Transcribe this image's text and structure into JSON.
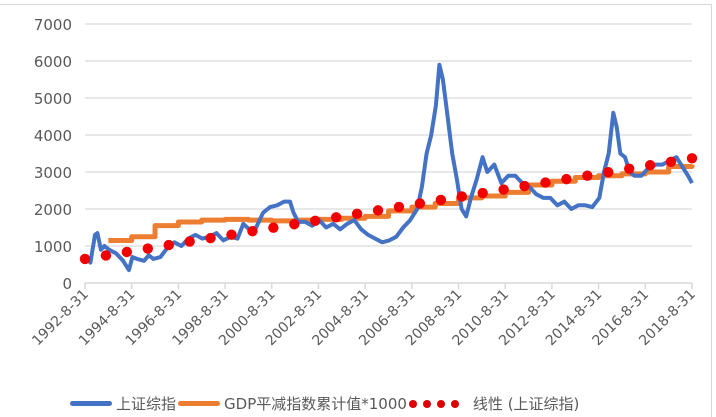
{
  "chart_data": {
    "type": "line",
    "title": "",
    "xlabel": "",
    "ylabel": "",
    "ylim": [
      0,
      7000
    ],
    "yticks": [
      0,
      1000,
      2000,
      3000,
      4000,
      5000,
      6000,
      7000
    ],
    "grid": true,
    "legend_position": "bottom",
    "x_tick_labels": [
      "1992-8-31",
      "1994-8-31",
      "1996-8-31",
      "1998-8-31",
      "2000-8-31",
      "2002-8-31",
      "2004-8-31",
      "2006-8-31",
      "2008-8-31",
      "2010-8-31",
      "2012-8-31",
      "2014-8-31",
      "2016-8-31",
      "2018-8-31"
    ],
    "series": [
      {
        "name": "上证综指",
        "type": "line",
        "color": "#4472c4",
        "x": [
          1992.67,
          1992.9,
          1993.1,
          1993.2,
          1993.35,
          1993.5,
          1993.7,
          1994.0,
          1994.3,
          1994.55,
          1994.7,
          1994.9,
          1995.2,
          1995.4,
          1995.6,
          1995.9,
          1996.2,
          1996.5,
          1996.8,
          1997.1,
          1997.4,
          1997.7,
          1998.0,
          1998.3,
          1998.6,
          1998.9,
          1999.2,
          1999.45,
          1999.7,
          2000.0,
          2000.3,
          2000.6,
          2000.9,
          2001.2,
          2001.45,
          2001.6,
          2001.8,
          2002.1,
          2002.4,
          2002.7,
          2003.0,
          2003.3,
          2003.6,
          2003.9,
          2004.2,
          2004.5,
          2004.8,
          2005.1,
          2005.4,
          2005.7,
          2006.0,
          2006.3,
          2006.6,
          2006.9,
          2007.1,
          2007.3,
          2007.5,
          2007.7,
          2007.85,
          2008.0,
          2008.2,
          2008.4,
          2008.6,
          2008.8,
          2009.0,
          2009.2,
          2009.45,
          2009.7,
          2009.9,
          2010.2,
          2010.5,
          2010.8,
          2011.1,
          2011.4,
          2011.7,
          2012.0,
          2012.3,
          2012.6,
          2012.9,
          2013.2,
          2013.5,
          2013.8,
          2014.1,
          2014.4,
          2014.7,
          2014.9,
          2015.1,
          2015.3,
          2015.45,
          2015.6,
          2015.8,
          2016.0,
          2016.2,
          2016.5,
          2016.8,
          2017.1,
          2017.4,
          2017.7,
          2018.0,
          2018.2,
          2018.5,
          2018.67
        ],
        "values": [
          700,
          550,
          1300,
          1350,
          900,
          1000,
          900,
          800,
          600,
          350,
          700,
          650,
          600,
          750,
          650,
          700,
          950,
          1100,
          1000,
          1200,
          1300,
          1200,
          1250,
          1350,
          1150,
          1250,
          1200,
          1600,
          1450,
          1500,
          1900,
          2050,
          2100,
          2200,
          2200,
          1900,
          1650,
          1650,
          1550,
          1700,
          1500,
          1600,
          1450,
          1600,
          1700,
          1450,
          1300,
          1200,
          1100,
          1150,
          1250,
          1500,
          1700,
          2000,
          2600,
          3500,
          4000,
          4800,
          5900,
          5500,
          4500,
          3500,
          2800,
          2000,
          1800,
          2300,
          2800,
          3400,
          3000,
          3200,
          2700,
          2900,
          2900,
          2700,
          2600,
          2400,
          2300,
          2300,
          2100,
          2200,
          2000,
          2100,
          2100,
          2050,
          2300,
          3000,
          3500,
          4600,
          4200,
          3500,
          3400,
          3000,
          2900,
          2900,
          3100,
          3200,
          3200,
          3300,
          3400,
          3200,
          2900,
          2700
        ],
        "approximate": true
      },
      {
        "name": "GDP平减指数累计值*1000",
        "type": "step",
        "color": "#ed7d31",
        "x": [
          1993.67,
          1994.67,
          1995.67,
          1996.67,
          1997.67,
          1998.67,
          1999.67,
          2000.67,
          2001.67,
          2002.67,
          2003.67,
          2004.67,
          2005.67,
          2006.67,
          2007.67,
          2008.67,
          2009.67,
          2010.67,
          2011.67,
          2012.67,
          2013.67,
          2014.67,
          2015.67,
          2016.67,
          2017.67,
          2018.67
        ],
        "values": [
          1150,
          1250,
          1550,
          1650,
          1700,
          1720,
          1700,
          1680,
          1700,
          1720,
          1750,
          1800,
          1950,
          2050,
          2150,
          2300,
          2350,
          2450,
          2650,
          2750,
          2850,
          2900,
          2950,
          3000,
          3150,
          3200
        ],
        "approximate": true
      },
      {
        "name": "线性 (上证综指)",
        "type": "trendline-dotted",
        "color": "#ff0000",
        "x": [
          1992.67,
          2018.67
        ],
        "values": [
          650,
          3370
        ],
        "approximate": true
      }
    ]
  },
  "legend": {
    "items": [
      {
        "label": "上证综指",
        "color": "#4472c4",
        "style": "line"
      },
      {
        "label": "GDP平减指数累计值*1000",
        "color": "#ed7d31",
        "style": "line"
      },
      {
        "label": "线性 (上证综指)",
        "color": "#ff0000",
        "style": "dots"
      }
    ]
  },
  "colors": {
    "grid": "#d9d9d9",
    "axis_text": "#595959"
  }
}
